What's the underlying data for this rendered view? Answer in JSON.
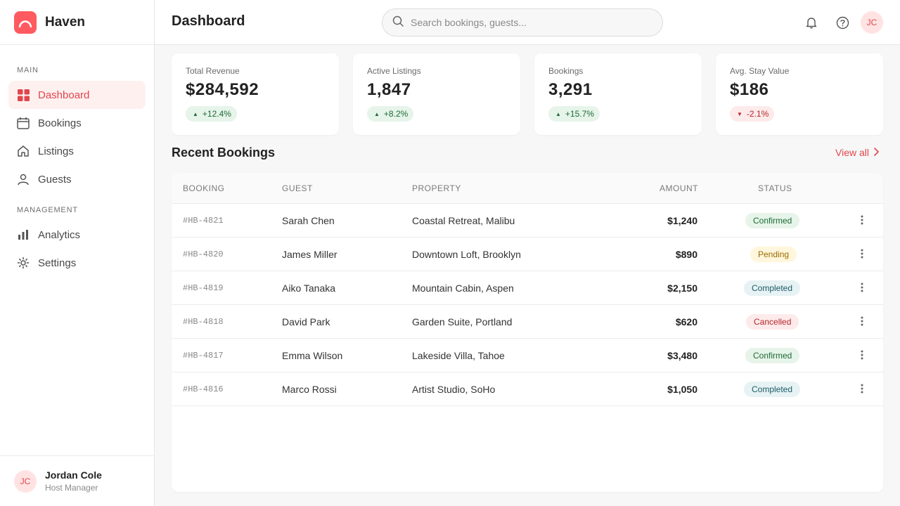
{
  "brand": {
    "name": "Haven",
    "accent": "#ff5a5f"
  },
  "sidebar": {
    "sections": [
      "MAIN",
      "MANAGEMENT"
    ],
    "items": [
      {
        "label": "Dashboard",
        "icon": "grid-icon",
        "active": true
      },
      {
        "label": "Bookings",
        "icon": "calendar-icon"
      },
      {
        "label": "Listings",
        "icon": "home-icon"
      },
      {
        "label": "Guests",
        "icon": "user-icon"
      },
      {
        "label": "Analytics",
        "icon": "bar-chart-icon"
      },
      {
        "label": "Settings",
        "icon": "gear-icon"
      }
    ],
    "user": {
      "initials": "JC",
      "name": "Jordan Cole",
      "role": "Host Manager"
    }
  },
  "header": {
    "title": "Dashboard",
    "search_placeholder": "Search bookings, guests...",
    "avatar_initials": "JC"
  },
  "stats": [
    {
      "label": "Total Revenue",
      "value": "$284,592",
      "delta": "+12.4%",
      "trend": "up"
    },
    {
      "label": "Active Listings",
      "value": "1,847",
      "delta": "+8.2%",
      "trend": "up"
    },
    {
      "label": "Bookings",
      "value": "3,291",
      "delta": "+15.7%",
      "trend": "up"
    },
    {
      "label": "Avg. Stay Value",
      "value": "$186",
      "delta": "-2.1%",
      "trend": "down"
    }
  ],
  "recent": {
    "title": "Recent Bookings",
    "view_all": "View all",
    "columns": {
      "booking": "BOOKING",
      "guest": "GUEST",
      "property": "PROPERTY",
      "amount": "AMOUNT",
      "status": "STATUS"
    },
    "rows": [
      {
        "id": "#HB-4821",
        "guest": "Sarah Chen",
        "property": "Coastal Retreat, Malibu",
        "amount": "$1,240",
        "status": "Confirmed"
      },
      {
        "id": "#HB-4820",
        "guest": "James Miller",
        "property": "Downtown Loft, Brooklyn",
        "amount": "$890",
        "status": "Pending"
      },
      {
        "id": "#HB-4819",
        "guest": "Aiko Tanaka",
        "property": "Mountain Cabin, Aspen",
        "amount": "$2,150",
        "status": "Completed"
      },
      {
        "id": "#HB-4818",
        "guest": "David Park",
        "property": "Garden Suite, Portland",
        "amount": "$620",
        "status": "Cancelled"
      },
      {
        "id": "#HB-4817",
        "guest": "Emma Wilson",
        "property": "Lakeside Villa, Tahoe",
        "amount": "$3,480",
        "status": "Confirmed"
      },
      {
        "id": "#HB-4816",
        "guest": "Marco Rossi",
        "property": "Artist Studio, SoHo",
        "amount": "$1,050",
        "status": "Completed"
      }
    ]
  }
}
